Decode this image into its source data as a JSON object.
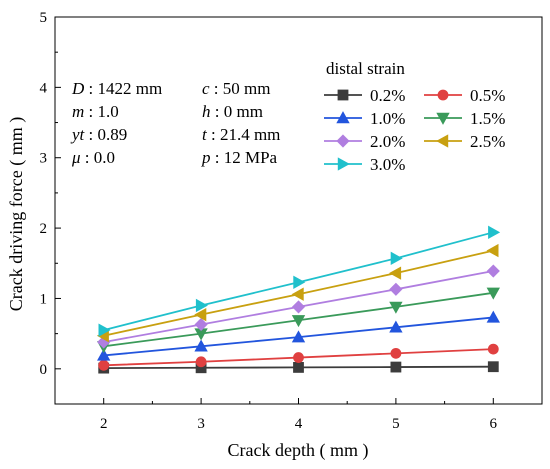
{
  "chart_data": {
    "type": "line",
    "title": "",
    "xlabel": "Crack depth ( mm )",
    "ylabel": "Crack driving force ( mm )",
    "xlim": [
      1.5,
      6.5
    ],
    "ylim": [
      -0.5,
      5
    ],
    "x_ticks": [
      "2",
      "3",
      "4",
      "5",
      "6"
    ],
    "y_ticks": [
      "0",
      "1",
      "2",
      "3",
      "4",
      "5"
    ],
    "x": [
      2,
      3,
      4,
      5,
      6
    ],
    "legend_title": "distal strain",
    "legend_position": "top-right",
    "grid": false,
    "parameters": [
      {
        "symbol": "D",
        "value": " : 1422 mm"
      },
      {
        "symbol": "c",
        "value": " : 50 mm"
      },
      {
        "symbol": "m",
        "value": " : 1.0"
      },
      {
        "symbol": "h",
        "value": " : 0 mm"
      },
      {
        "symbol": "yt",
        "value": " : 0.89"
      },
      {
        "symbol": "t",
        "value": " : 21.4 mm"
      },
      {
        "symbol": "μ",
        "value": " : 0.0"
      },
      {
        "symbol": "p",
        "value": " : 12 MPa"
      }
    ],
    "series": [
      {
        "name": "0.2%",
        "color": "#3c3c3c",
        "marker": "square",
        "values": [
          0.01,
          0.015,
          0.02,
          0.025,
          0.03
        ]
      },
      {
        "name": "0.5%",
        "color": "#e04040",
        "marker": "circle",
        "values": [
          0.05,
          0.1,
          0.16,
          0.22,
          0.28
        ]
      },
      {
        "name": "1.0%",
        "color": "#2255dd",
        "marker": "triangle-up",
        "values": [
          0.19,
          0.32,
          0.45,
          0.59,
          0.73
        ]
      },
      {
        "name": "1.5%",
        "color": "#3a9a5a",
        "marker": "triangle-down",
        "values": [
          0.32,
          0.5,
          0.69,
          0.88,
          1.08
        ]
      },
      {
        "name": "2.0%",
        "color": "#b07ee0",
        "marker": "diamond",
        "values": [
          0.38,
          0.63,
          0.88,
          1.13,
          1.39
        ]
      },
      {
        "name": "2.5%",
        "color": "#c8a010",
        "marker": "triangle-left",
        "values": [
          0.47,
          0.77,
          1.06,
          1.36,
          1.68
        ]
      },
      {
        "name": "3.0%",
        "color": "#20c0cc",
        "marker": "triangle-right",
        "values": [
          0.55,
          0.9,
          1.23,
          1.57,
          1.94
        ]
      }
    ]
  }
}
